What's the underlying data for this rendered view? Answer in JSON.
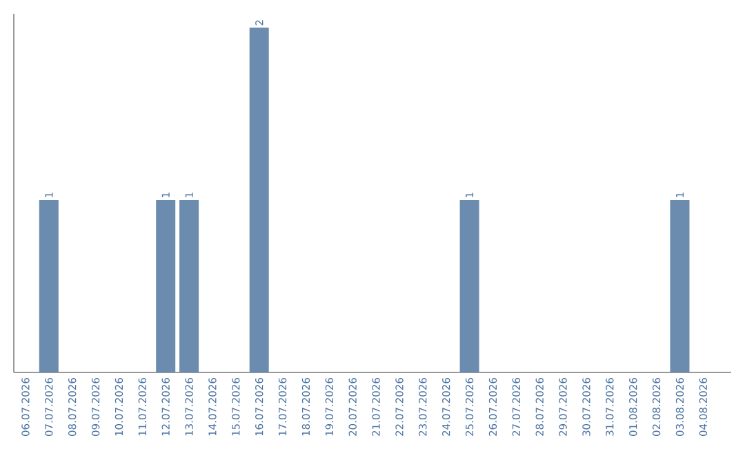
{
  "chart_data": {
    "type": "bar",
    "categories": [
      "06.07.2026",
      "07.07.2026",
      "08.07.2026",
      "09.07.2026",
      "10.07.2026",
      "11.07.2026",
      "12.07.2026",
      "13.07.2026",
      "14.07.2026",
      "15.07.2026",
      "16.07.2026",
      "17.07.2026",
      "18.07.2026",
      "19.07.2026",
      "20.07.2026",
      "21.07.2026",
      "22.07.2026",
      "23.07.2026",
      "24.07.2026",
      "25.07.2026",
      "26.07.2026",
      "27.07.2026",
      "28.07.2026",
      "29.07.2026",
      "30.07.2026",
      "31.07.2026",
      "01.08.2026",
      "02.08.2026",
      "03.08.2026",
      "04.08.2026"
    ],
    "values": [
      0,
      1,
      0,
      0,
      0,
      0,
      1,
      1,
      0,
      0,
      2,
      0,
      0,
      0,
      0,
      0,
      0,
      0,
      0,
      1,
      0,
      0,
      0,
      0,
      0,
      0,
      0,
      0,
      1,
      0
    ],
    "value_labels": [
      null,
      "1",
      null,
      null,
      null,
      null,
      "1",
      "1",
      null,
      null,
      "2",
      null,
      null,
      null,
      null,
      null,
      null,
      null,
      null,
      "1",
      null,
      null,
      null,
      null,
      null,
      null,
      null,
      null,
      "1",
      null
    ],
    "color": "#6b8cae",
    "tick_labels": "x"
  }
}
